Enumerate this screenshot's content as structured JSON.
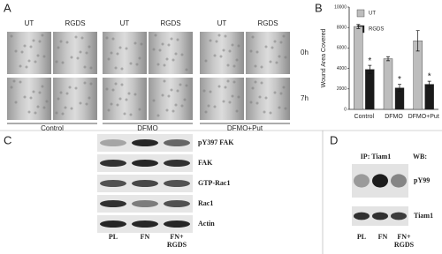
{
  "panels": {
    "a": {
      "label": "A",
      "columns": [
        "UT",
        "RGDS",
        "UT",
        "RGDS",
        "UT",
        "RGDS"
      ],
      "rows": [
        "0h",
        "7h"
      ],
      "groups": [
        "Control",
        "DFMO",
        "DFMO+Put"
      ]
    },
    "b": {
      "label": "B"
    },
    "c": {
      "label": "C",
      "bands": [
        "pY397 FAK",
        "FAK",
        "GTP-Rac1",
        "Rac1",
        "Actin"
      ],
      "lanes": [
        "PL",
        "FN",
        "FN+\nRGDS"
      ]
    },
    "d": {
      "label": "D",
      "ip": "IP: Tiam1",
      "wb": "WB:",
      "bands": [
        "pY99",
        "Tiam1"
      ],
      "lanes": [
        "PL",
        "FN",
        "FN+\nRGDS"
      ]
    }
  },
  "chart_data": {
    "type": "bar",
    "y_label": "Wound Area Covered",
    "categories": [
      "Control",
      "DFMO",
      "DFMO+Put"
    ],
    "series": [
      {
        "name": "UT",
        "color": "#bdbdbd",
        "values": [
          8100,
          4950,
          6700
        ],
        "errors": [
          200,
          200,
          1000
        ]
      },
      {
        "name": "RGDS",
        "color": "#1a1a1a",
        "values": [
          3900,
          2100,
          2450
        ],
        "errors": [
          400,
          350,
          300
        ]
      }
    ],
    "annotations": [
      "*",
      "*",
      "*"
    ],
    "ylim": [
      0,
      10000
    ],
    "yticks": [
      0,
      2000,
      4000,
      6000,
      8000,
      10000
    ]
  }
}
